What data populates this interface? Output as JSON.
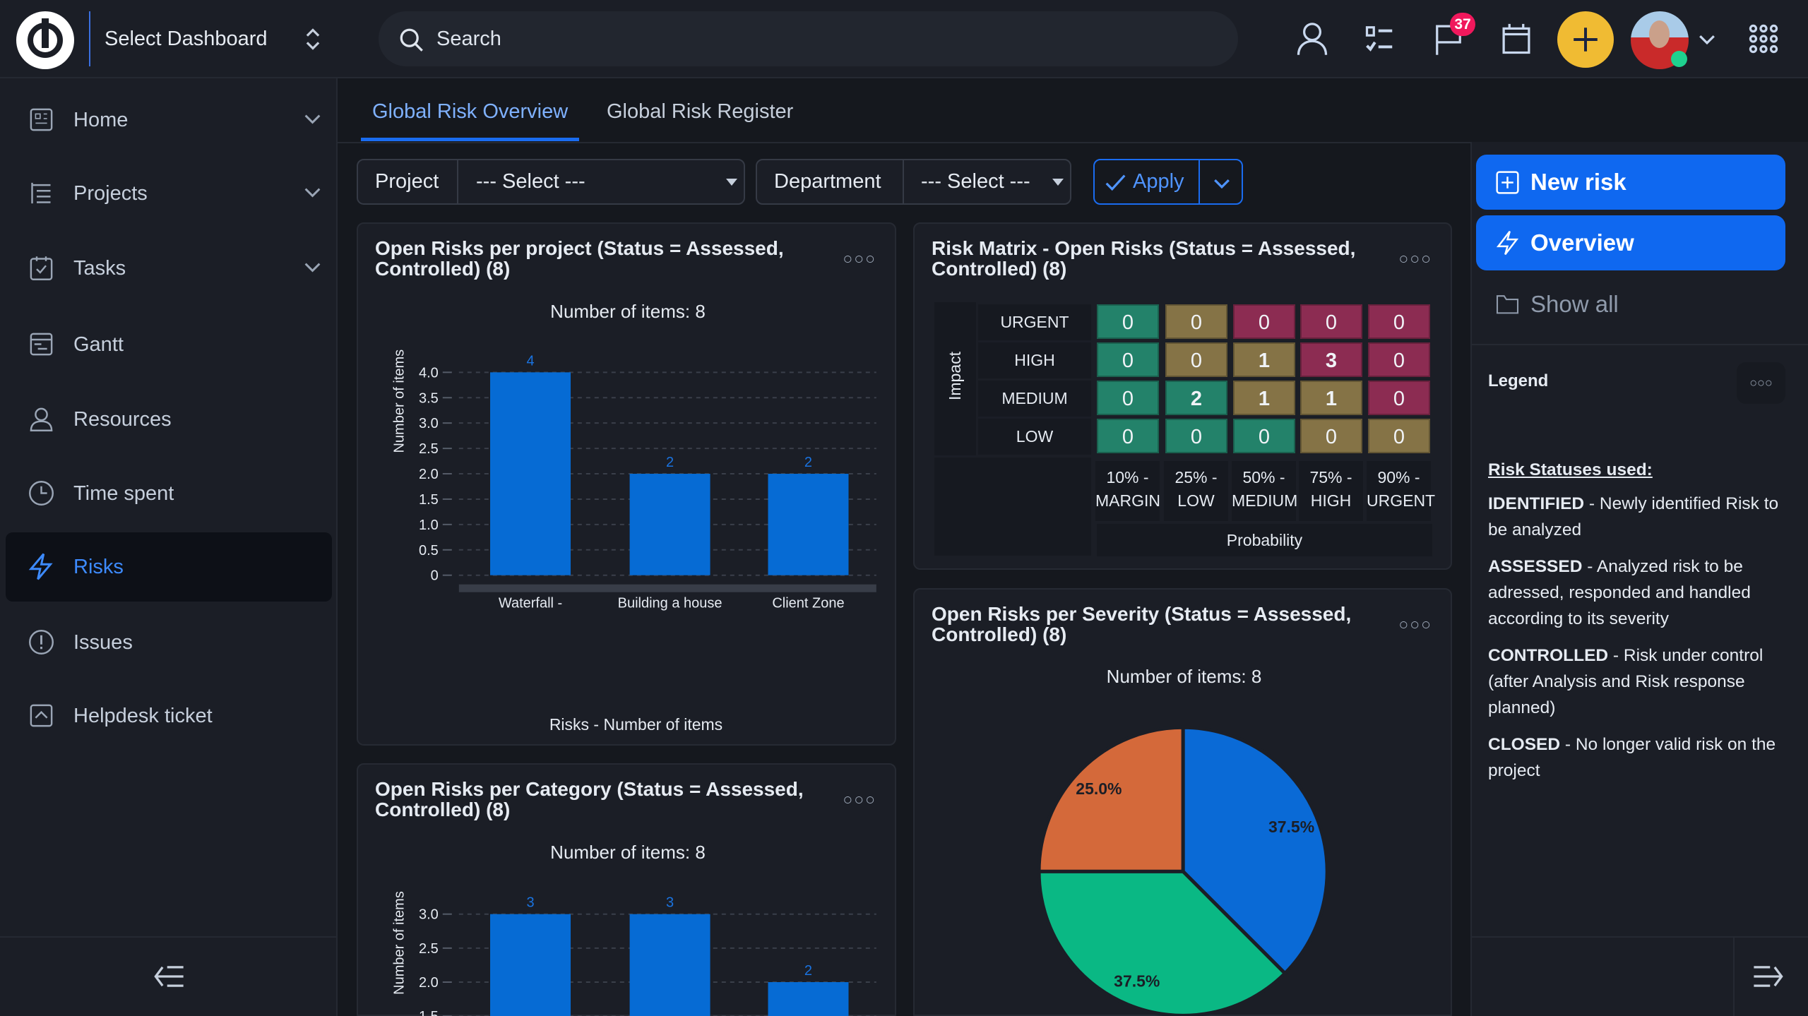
{
  "header": {
    "dashboard_select": "Select Dashboard",
    "search_placeholder": "Search",
    "notifications_count": "37"
  },
  "sidebar": {
    "items": [
      {
        "label": "Home",
        "icon": "home-icon",
        "expandable": true
      },
      {
        "label": "Projects",
        "icon": "projects-icon",
        "expandable": true
      },
      {
        "label": "Tasks",
        "icon": "tasks-icon",
        "expandable": true
      },
      {
        "label": "Gantt",
        "icon": "gantt-icon",
        "expandable": false
      },
      {
        "label": "Resources",
        "icon": "user-icon",
        "expandable": false
      },
      {
        "label": "Time spent",
        "icon": "clock-icon",
        "expandable": false
      },
      {
        "label": "Risks",
        "icon": "lightning-icon",
        "expandable": false,
        "active": true
      },
      {
        "label": "Issues",
        "icon": "alert-icon",
        "expandable": false
      },
      {
        "label": "Helpdesk ticket",
        "icon": "ticket-icon",
        "expandable": false
      }
    ]
  },
  "tabs": [
    {
      "label": "Global Risk Overview",
      "active": true
    },
    {
      "label": "Global Risk Register"
    }
  ],
  "filters": {
    "project_label": "Project",
    "project_value": "--- Select ---",
    "department_label": "Department",
    "department_value": "--- Select ---",
    "apply_label": "Apply"
  },
  "widgets": {
    "per_project": {
      "title": "Open Risks per project (Status = Assessed, Controlled) (8)",
      "subtitle": "Number of items: 8",
      "footer": "Risks - Number of items"
    },
    "per_category": {
      "title": "Open Risks per Category (Status = Assessed, Controlled) (8)",
      "subtitle": "Number of items: 8"
    },
    "matrix": {
      "title": "Risk Matrix - Open Risks (Status = Assessed, Controlled) (8)",
      "impact_label": "Impact",
      "probability_label": "Probability",
      "rows": [
        "URGENT",
        "HIGH",
        "MEDIUM",
        "LOW"
      ],
      "cols": [
        [
          "10% -",
          "MARGIN"
        ],
        [
          "25% -",
          "LOW"
        ],
        [
          "50% -",
          "MEDIUM"
        ],
        [
          "75% -",
          "HIGH"
        ],
        [
          "90% -",
          "URGENT"
        ]
      ],
      "values": [
        [
          0,
          0,
          0,
          0,
          0
        ],
        [
          0,
          0,
          1,
          3,
          0
        ],
        [
          0,
          2,
          1,
          1,
          0
        ],
        [
          0,
          0,
          0,
          0,
          0
        ]
      ],
      "levels": [
        [
          "g",
          "y",
          "r",
          "r",
          "r"
        ],
        [
          "g",
          "y",
          "y",
          "r",
          "r"
        ],
        [
          "g",
          "g",
          "y",
          "y",
          "r"
        ],
        [
          "g",
          "g",
          "g",
          "y",
          "y"
        ]
      ],
      "colors": {
        "g": "#23826a",
        "y": "#857346",
        "r": "#8c2c52"
      }
    },
    "per_severity": {
      "title": "Open Risks per Severity (Status = Assessed, Controlled) (8)",
      "subtitle": "Number of items: 8"
    }
  },
  "right_panel": {
    "new_risk": "New risk",
    "overview": "Overview",
    "show_all": "Show all",
    "legend_title": "Legend",
    "legend_heading": "Risk Statuses used:",
    "statuses": [
      {
        "name": "IDENTIFIED",
        "desc": " - Newly identified Risk to be analyzed"
      },
      {
        "name": "ASSESSED",
        "desc": " - Analyzed risk to be adressed, responded and handled according to its severity"
      },
      {
        "name": "CONTROLLED",
        "desc": " - Risk under control (after Analysis and Risk response planned)"
      },
      {
        "name": "CLOSED",
        "desc": " - No longer valid risk on the project"
      }
    ]
  },
  "chart_data": [
    {
      "type": "bar",
      "title": "Open Risks per project (Status = Assessed, Controlled) (8)",
      "categories": [
        "Waterfall -",
        "Building a house",
        "Client Zone"
      ],
      "values": [
        4,
        2,
        2
      ],
      "ylabel": "Number of items",
      "xlabel": "Risks - Number of items",
      "ylim": [
        0,
        4
      ],
      "yticks": [
        "0",
        "0.5",
        "1.0",
        "1.5",
        "2.0",
        "2.5",
        "3.0",
        "3.5",
        "4.0"
      ],
      "color": "#066bd4"
    },
    {
      "type": "bar",
      "title": "Open Risks per Category (Status = Assessed, Controlled) (8)",
      "values": [
        3,
        3,
        2
      ],
      "ylabel": "Number of items",
      "ylim": [
        0,
        3
      ],
      "yticks": [
        "1.5",
        "2.0",
        "2.5",
        "3.0"
      ],
      "color": "#066bd4"
    },
    {
      "type": "pie",
      "title": "Open Risks per Severity (Status = Assessed, Controlled) (8)",
      "slices": [
        {
          "value": 37.5,
          "label": "37.5%",
          "color": "#0a6ad6"
        },
        {
          "value": 37.5,
          "label": "37.5%",
          "color": "#0ab884"
        },
        {
          "value": 25.0,
          "label": "25.0%",
          "color": "#d4693a"
        }
      ]
    }
  ]
}
